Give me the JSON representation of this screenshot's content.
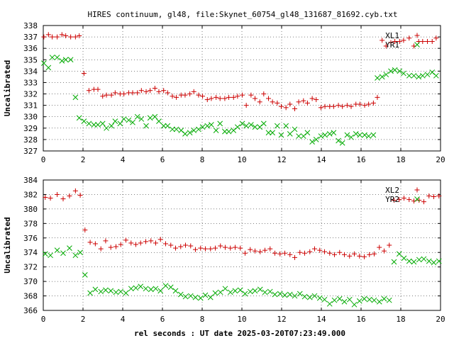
{
  "title": "HIRES continuum, gl48, file:Skynet_60754_gl48_131687_81692.cyb.txt",
  "xlabel": "rel seconds : UT date 2025-03-20T07:23:49.000",
  "colors": {
    "red_series": "#cc0000",
    "green_series": "#00aa00",
    "axis": "#000000",
    "grid": "#000000"
  },
  "chart_data": [
    {
      "type": "scatter",
      "ylabel": "Uncalibrated",
      "xlim": [
        0,
        20
      ],
      "ylim": [
        327,
        338
      ],
      "xticks": [
        0,
        2,
        4,
        6,
        8,
        10,
        12,
        14,
        16,
        18,
        20
      ],
      "yticks": [
        327,
        328,
        329,
        330,
        331,
        332,
        333,
        334,
        335,
        336,
        337,
        338
      ],
      "grid": true,
      "legend": "top-right",
      "series": [
        {
          "name": "XL1",
          "marker": "plus",
          "color": "#cc0000",
          "x": [
            0.03,
            0.26,
            0.45,
            0.7,
            0.94,
            1.13,
            1.38,
            1.62,
            1.81,
            2.05,
            2.3,
            2.55,
            2.75,
            2.99,
            3.18,
            3.43,
            3.62,
            3.87,
            4.06,
            4.3,
            4.5,
            4.74,
            4.94,
            5.18,
            5.38,
            5.62,
            5.82,
            6.06,
            6.26,
            6.5,
            6.7,
            6.94,
            7.14,
            7.38,
            7.58,
            7.82,
            8.02,
            8.26,
            8.46,
            8.7,
            8.9,
            9.14,
            9.34,
            9.58,
            9.78,
            10.02,
            10.22,
            10.46,
            10.66,
            10.9,
            11.1,
            11.34,
            11.54,
            11.78,
            11.98,
            12.22,
            12.42,
            12.66,
            12.86,
            13.1,
            13.3,
            13.54,
            13.74,
            13.98,
            14.18,
            14.42,
            14.62,
            14.86,
            15.06,
            15.3,
            15.5,
            15.74,
            15.94,
            16.18,
            16.38,
            16.62,
            16.82,
            17.06,
            17.26,
            17.5,
            17.7,
            17.94,
            18.14,
            18.42,
            18.66,
            18.9,
            19.1,
            19.34,
            19.58,
            19.78
          ],
          "y": [
            337.0,
            337.2,
            337.0,
            337.0,
            337.2,
            337.1,
            337.0,
            337.0,
            337.1,
            333.8,
            332.3,
            332.4,
            332.4,
            331.8,
            331.9,
            331.9,
            332.1,
            332.0,
            332.0,
            332.1,
            332.1,
            332.1,
            332.3,
            332.2,
            332.3,
            332.5,
            332.2,
            332.3,
            332.1,
            331.8,
            331.7,
            331.9,
            331.9,
            332.0,
            332.2,
            331.9,
            331.8,
            331.5,
            331.6,
            331.7,
            331.6,
            331.6,
            331.7,
            331.7,
            331.8,
            331.9,
            331.0,
            331.9,
            331.6,
            331.3,
            332.0,
            331.6,
            331.3,
            331.2,
            330.9,
            330.8,
            331.1,
            330.7,
            331.3,
            331.4,
            331.2,
            331.6,
            331.5,
            330.8,
            330.9,
            330.9,
            330.9,
            331.0,
            330.9,
            331.0,
            330.9,
            331.1,
            331.1,
            331.0,
            331.1,
            331.2,
            331.7,
            336.7,
            336.2,
            336.5,
            336.6,
            336.6,
            336.7,
            336.9,
            336.2,
            336.6,
            336.6,
            336.6,
            336.6,
            336.9
          ]
        },
        {
          "name": "YR1",
          "marker": "cross",
          "color": "#00aa00",
          "x": [
            0.03,
            0.26,
            0.45,
            0.7,
            0.94,
            1.13,
            1.38,
            1.62,
            1.81,
            2.05,
            2.3,
            2.55,
            2.75,
            2.99,
            3.18,
            3.43,
            3.62,
            3.87,
            4.06,
            4.3,
            4.5,
            4.74,
            4.94,
            5.18,
            5.38,
            5.62,
            5.82,
            6.06,
            6.26,
            6.5,
            6.7,
            6.94,
            7.14,
            7.38,
            7.58,
            7.82,
            8.02,
            8.26,
            8.46,
            8.7,
            8.9,
            9.14,
            9.34,
            9.58,
            9.78,
            10.02,
            10.22,
            10.46,
            10.66,
            10.9,
            11.1,
            11.34,
            11.54,
            11.78,
            11.98,
            12.22,
            12.42,
            12.66,
            12.86,
            13.1,
            13.3,
            13.54,
            13.74,
            13.98,
            14.18,
            14.42,
            14.62,
            14.86,
            15.06,
            15.3,
            15.5,
            15.74,
            15.94,
            16.18,
            16.38,
            16.62,
            16.82,
            17.06,
            17.26,
            17.5,
            17.7,
            17.94,
            18.14,
            18.42,
            18.66,
            18.9,
            19.1,
            19.34,
            19.58,
            19.78
          ],
          "y": [
            334.7,
            334.3,
            335.2,
            335.2,
            334.9,
            335.0,
            335.0,
            331.7,
            329.9,
            329.6,
            329.4,
            329.3,
            329.3,
            329.4,
            329.0,
            329.2,
            329.6,
            329.4,
            329.8,
            329.7,
            329.5,
            330.0,
            329.8,
            329.2,
            329.9,
            330.0,
            329.6,
            329.2,
            329.2,
            328.9,
            328.9,
            328.8,
            328.5,
            328.6,
            328.8,
            328.9,
            329.1,
            329.2,
            329.3,
            328.8,
            329.4,
            328.7,
            328.7,
            328.8,
            329.1,
            329.4,
            329.2,
            329.3,
            329.1,
            329.1,
            329.4,
            328.6,
            328.6,
            329.2,
            328.4,
            329.2,
            328.5,
            328.9,
            328.3,
            328.3,
            328.6,
            327.8,
            328.0,
            328.3,
            328.4,
            328.5,
            328.6,
            327.9,
            327.7,
            328.4,
            328.2,
            328.5,
            328.4,
            328.4,
            328.3,
            328.4,
            333.4,
            333.5,
            333.7,
            334.0,
            334.1,
            334.0,
            333.8,
            333.6,
            333.6,
            333.5,
            333.6,
            333.7,
            333.9,
            333.6
          ]
        }
      ]
    },
    {
      "type": "scatter",
      "ylabel": "Uncalibrated",
      "xlim": [
        0,
        20
      ],
      "ylim": [
        366,
        384
      ],
      "xticks": [
        0,
        2,
        4,
        6,
        8,
        10,
        12,
        14,
        16,
        18,
        20
      ],
      "yticks": [
        366,
        368,
        370,
        372,
        374,
        376,
        378,
        380,
        382,
        384
      ],
      "grid": true,
      "legend": "top-right",
      "series": [
        {
          "name": "XL2",
          "marker": "plus",
          "color": "#cc0000",
          "x": [
            0.1,
            0.36,
            0.7,
            1.0,
            1.32,
            1.62,
            1.86,
            2.1,
            2.36,
            2.62,
            2.9,
            3.14,
            3.4,
            3.66,
            3.9,
            4.16,
            4.42,
            4.66,
            4.9,
            5.16,
            5.42,
            5.66,
            5.9,
            6.16,
            6.42,
            6.66,
            6.92,
            7.16,
            7.42,
            7.66,
            7.92,
            8.16,
            8.42,
            8.66,
            8.92,
            9.16,
            9.42,
            9.66,
            9.92,
            10.16,
            10.42,
            10.66,
            10.92,
            11.16,
            11.42,
            11.66,
            11.92,
            12.16,
            12.42,
            12.66,
            12.92,
            13.16,
            13.42,
            13.66,
            13.92,
            14.16,
            14.42,
            14.66,
            14.92,
            15.16,
            15.42,
            15.66,
            15.92,
            16.16,
            16.42,
            16.66,
            16.92,
            17.16,
            17.42,
            17.66,
            17.92,
            18.16,
            18.42,
            18.66,
            18.92,
            19.16,
            19.42,
            19.66,
            19.92
          ],
          "y": [
            381.6,
            381.5,
            382.0,
            381.4,
            381.8,
            382.5,
            381.9,
            377.1,
            375.4,
            375.2,
            374.5,
            375.6,
            374.7,
            374.8,
            375.1,
            375.7,
            375.3,
            375.1,
            375.3,
            375.5,
            375.6,
            375.3,
            375.8,
            375.2,
            375.0,
            374.6,
            374.8,
            375.0,
            374.9,
            374.4,
            374.6,
            374.5,
            374.5,
            374.6,
            374.9,
            374.7,
            374.6,
            374.7,
            374.6,
            373.9,
            374.4,
            374.2,
            374.1,
            374.3,
            374.5,
            373.9,
            373.8,
            373.9,
            373.7,
            373.3,
            374.0,
            373.9,
            374.1,
            374.5,
            374.3,
            374.1,
            373.9,
            373.7,
            374.0,
            373.7,
            373.5,
            373.8,
            373.5,
            373.4,
            373.7,
            373.8,
            374.7,
            374.2,
            375.0,
            381.2,
            381.3,
            381.5,
            381.3,
            381.1,
            381.2,
            381.0,
            381.8,
            381.7,
            381.8
          ]
        },
        {
          "name": "YR2",
          "marker": "cross",
          "color": "#00aa00",
          "x": [
            0.1,
            0.36,
            0.7,
            1.0,
            1.32,
            1.62,
            1.86,
            2.1,
            2.36,
            2.62,
            2.9,
            3.14,
            3.4,
            3.66,
            3.9,
            4.16,
            4.42,
            4.66,
            4.9,
            5.16,
            5.42,
            5.66,
            5.9,
            6.16,
            6.42,
            6.66,
            6.92,
            7.16,
            7.42,
            7.66,
            7.92,
            8.16,
            8.42,
            8.66,
            8.92,
            9.16,
            9.42,
            9.66,
            9.92,
            10.16,
            10.42,
            10.66,
            10.92,
            11.16,
            11.42,
            11.66,
            11.92,
            12.16,
            12.42,
            12.66,
            12.92,
            13.16,
            13.42,
            13.66,
            13.92,
            14.16,
            14.42,
            14.66,
            14.92,
            15.16,
            15.42,
            15.66,
            15.92,
            16.16,
            16.42,
            16.66,
            16.92,
            17.16,
            17.42,
            17.66,
            17.92,
            18.16,
            18.42,
            18.66,
            18.92,
            19.16,
            19.42,
            19.66,
            19.92
          ],
          "y": [
            373.8,
            373.6,
            374.3,
            373.9,
            374.6,
            373.6,
            374.0,
            370.9,
            368.4,
            368.9,
            368.6,
            368.8,
            368.7,
            368.5,
            368.6,
            368.4,
            369.0,
            369.1,
            369.3,
            369.0,
            368.9,
            369.0,
            368.7,
            369.4,
            369.2,
            368.7,
            368.2,
            367.9,
            368.0,
            367.8,
            367.7,
            368.1,
            367.8,
            368.4,
            368.5,
            369.0,
            368.5,
            368.7,
            368.8,
            368.3,
            368.6,
            368.7,
            368.9,
            368.5,
            368.6,
            368.2,
            368.3,
            368.1,
            368.2,
            368.0,
            368.3,
            367.9,
            367.8,
            368.0,
            367.7,
            367.5,
            366.9,
            367.4,
            367.6,
            367.2,
            367.5,
            366.8,
            367.3,
            367.6,
            367.5,
            367.4,
            367.2,
            367.6,
            367.4,
            372.7,
            373.8,
            373.2,
            372.8,
            372.7,
            373.0,
            373.1,
            372.8,
            372.6,
            372.8
          ]
        }
      ]
    }
  ]
}
